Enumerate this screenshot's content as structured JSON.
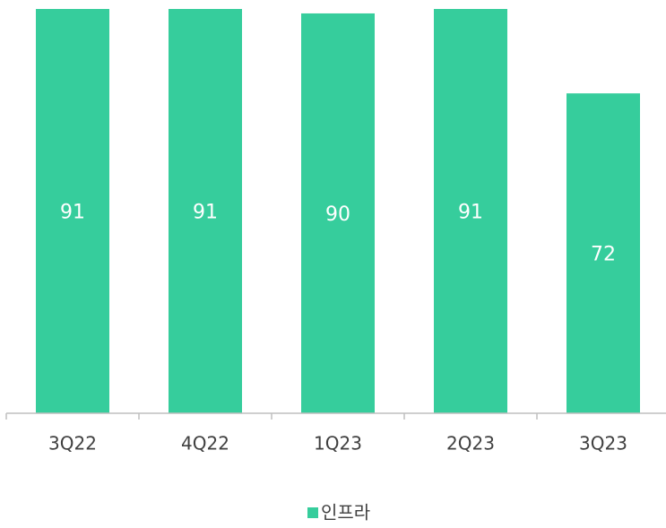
{
  "chart_data": {
    "type": "bar",
    "categories": [
      "3Q22",
      "4Q22",
      "1Q23",
      "2Q23",
      "3Q23"
    ],
    "series": [
      {
        "name": "인프라",
        "color": "#36cd9c",
        "values": [
          91,
          91,
          90,
          91,
          72
        ]
      }
    ],
    "ylim": [
      0,
      91
    ],
    "legend": "bottom"
  }
}
